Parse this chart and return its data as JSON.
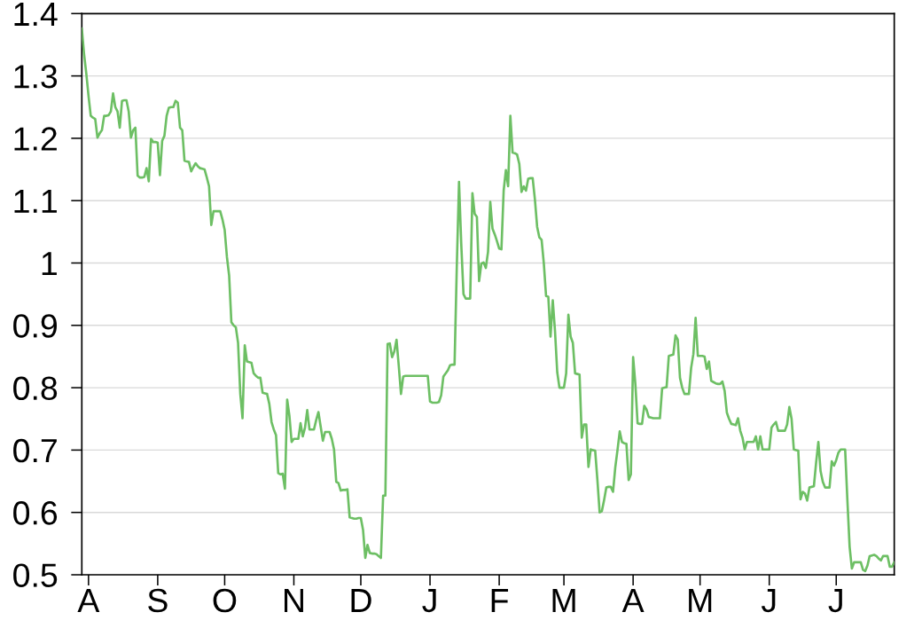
{
  "chart_data": {
    "type": "line",
    "categories": [
      null,
      null,
      null,
      "A",
      null,
      null,
      null,
      null,
      null,
      null,
      null,
      null,
      null,
      null,
      null,
      null,
      null,
      null,
      null,
      null,
      null,
      null,
      null,
      null,
      null,
      null,
      null,
      null,
      null,
      null,
      null,
      null,
      null,
      null,
      "S",
      null,
      null,
      null,
      null,
      null,
      null,
      null,
      null,
      null,
      null,
      null,
      null,
      null,
      null,
      null,
      null,
      null,
      null,
      null,
      null,
      null,
      null,
      null,
      null,
      null,
      null,
      null,
      null,
      null,
      "O",
      null,
      null,
      null,
      null,
      null,
      null,
      null,
      null,
      null,
      null,
      null,
      null,
      null,
      null,
      null,
      null,
      null,
      null,
      null,
      null,
      null,
      null,
      null,
      null,
      null,
      null,
      null,
      null,
      null,
      null,
      "N",
      null,
      null,
      null,
      null,
      null,
      null,
      null,
      null,
      null,
      null,
      null,
      null,
      null,
      null,
      null,
      null,
      null,
      null,
      null,
      null,
      null,
      null,
      null,
      null,
      null,
      null,
      null,
      null,
      null,
      "D",
      null,
      null,
      null,
      null,
      null,
      null,
      null,
      null,
      null,
      null,
      null,
      null,
      null,
      null,
      null,
      null,
      null,
      null,
      null,
      null,
      null,
      null,
      null,
      null,
      null,
      null,
      null,
      null,
      null,
      null,
      "J",
      null,
      null,
      null,
      null,
      null,
      null,
      null,
      null,
      null,
      null,
      null,
      null,
      null,
      null,
      null,
      null,
      null,
      null,
      null,
      null,
      null,
      null,
      null,
      null,
      null,
      null,
      null,
      null,
      null,
      null,
      "F",
      null,
      null,
      null,
      null,
      null,
      null,
      null,
      null,
      null,
      null,
      null,
      null,
      null,
      null,
      null,
      null,
      null,
      null,
      null,
      null,
      null,
      null,
      null,
      null,
      null,
      null,
      null,
      null,
      "M",
      null,
      null,
      null,
      null,
      null,
      null,
      null,
      null,
      null,
      null,
      null,
      null,
      null,
      null,
      null,
      null,
      null,
      null,
      null,
      null,
      null,
      null,
      null,
      null,
      null,
      null,
      null,
      null,
      null,
      null,
      "A",
      null,
      null,
      null,
      null,
      null,
      null,
      null,
      null,
      null,
      null,
      null,
      null,
      null,
      null,
      null,
      null,
      null,
      null,
      null,
      null,
      null,
      null,
      null,
      null,
      null,
      null,
      null,
      null,
      null,
      "M",
      null,
      null,
      null,
      null,
      null,
      null,
      null,
      null,
      null,
      null,
      null,
      null,
      null,
      null,
      null,
      null,
      null,
      null,
      null,
      null,
      null,
      null,
      null,
      null,
      null,
      null,
      null,
      null,
      null,
      null,
      "J",
      null,
      null,
      null,
      null,
      null,
      null,
      null,
      null,
      null,
      null,
      null,
      null,
      null,
      null,
      null,
      null,
      null,
      null,
      null,
      null,
      null,
      null,
      null,
      null,
      null,
      null,
      null,
      null,
      null,
      "J",
      null,
      null,
      null,
      null,
      null,
      null,
      null,
      null,
      null,
      null,
      null,
      null,
      null,
      null,
      null,
      null,
      null,
      null,
      null,
      null,
      null,
      null,
      null,
      null,
      null,
      null
    ],
    "series": [
      {
        "color": "#6dbf64",
        "values": [
          1.376,
          1.335,
          1.304,
          1.268,
          1.236,
          1.233,
          1.231,
          1.201,
          1.208,
          1.213,
          1.236,
          1.236,
          1.237,
          1.243,
          1.272,
          1.25,
          1.243,
          1.217,
          1.26,
          1.261,
          1.261,
          1.243,
          1.201,
          1.213,
          1.217,
          1.14,
          1.137,
          1.137,
          1.138,
          1.152,
          1.131,
          1.199,
          1.194,
          1.194,
          1.193,
          1.141,
          1.196,
          1.204,
          1.236,
          1.249,
          1.25,
          1.25,
          1.26,
          1.257,
          1.217,
          1.213,
          1.164,
          1.163,
          1.162,
          1.147,
          1.154,
          1.16,
          1.155,
          1.152,
          1.151,
          1.15,
          1.137,
          1.123,
          1.061,
          1.083,
          1.083,
          1.083,
          1.083,
          1.07,
          1.053,
          1.01,
          0.98,
          0.905,
          0.9,
          0.897,
          0.872,
          0.79,
          0.751,
          0.868,
          0.842,
          0.841,
          0.84,
          0.823,
          0.819,
          0.816,
          0.816,
          0.792,
          0.791,
          0.79,
          0.774,
          0.745,
          0.733,
          0.724,
          0.663,
          0.661,
          0.662,
          0.638,
          0.781,
          0.755,
          0.713,
          0.718,
          0.718,
          0.718,
          0.743,
          0.722,
          0.736,
          0.764,
          0.733,
          0.733,
          0.733,
          0.748,
          0.761,
          0.738,
          0.715,
          0.729,
          0.729,
          0.729,
          0.718,
          0.701,
          0.649,
          0.647,
          0.635,
          0.636,
          0.636,
          0.637,
          0.592,
          0.591,
          0.59,
          0.59,
          0.591,
          0.591,
          0.572,
          0.527,
          0.548,
          0.535,
          0.534,
          0.534,
          0.533,
          0.53,
          0.527,
          0.627,
          0.627,
          0.87,
          0.871,
          0.849,
          0.858,
          0.877,
          0.835,
          0.79,
          0.818,
          0.819,
          0.819,
          0.819,
          0.819,
          0.819,
          0.819,
          0.819,
          0.819,
          0.819,
          0.819,
          0.819,
          0.778,
          0.776,
          0.776,
          0.776,
          0.777,
          0.788,
          0.818,
          0.823,
          0.828,
          0.836,
          0.837,
          0.837,
          0.994,
          1.13,
          1.03,
          0.95,
          0.943,
          0.943,
          0.943,
          1.112,
          1.079,
          1.074,
          0.971,
          0.999,
          1.001,
          0.992,
          1.018,
          1.098,
          1.055,
          1.046,
          1.035,
          1.023,
          1.022,
          1.116,
          1.149,
          1.123,
          1.236,
          1.177,
          1.176,
          1.174,
          1.159,
          1.114,
          1.123,
          1.116,
          1.135,
          1.136,
          1.136,
          1.102,
          1.058,
          1.041,
          1.037,
          0.999,
          0.947,
          0.946,
          0.882,
          0.94,
          0.891,
          0.825,
          0.8,
          0.8,
          0.8,
          0.823,
          0.917,
          0.882,
          0.872,
          0.823,
          0.822,
          0.821,
          0.72,
          0.741,
          0.741,
          0.673,
          0.701,
          0.7,
          0.699,
          0.652,
          0.6,
          0.602,
          0.62,
          0.64,
          0.641,
          0.641,
          0.633,
          0.672,
          0.7,
          0.73,
          0.713,
          0.711,
          0.71,
          0.652,
          0.661,
          0.849,
          0.806,
          0.743,
          0.742,
          0.742,
          0.771,
          0.765,
          0.753,
          0.752,
          0.751,
          0.751,
          0.751,
          0.751,
          0.799,
          0.8,
          0.801,
          0.851,
          0.852,
          0.853,
          0.884,
          0.877,
          0.816,
          0.8,
          0.79,
          0.79,
          0.79,
          0.832,
          0.854,
          0.912,
          0.851,
          0.851,
          0.851,
          0.85,
          0.83,
          0.842,
          0.811,
          0.809,
          0.807,
          0.806,
          0.806,
          0.81,
          0.795,
          0.76,
          0.75,
          0.742,
          0.741,
          0.74,
          0.751,
          0.731,
          0.72,
          0.701,
          0.713,
          0.713,
          0.713,
          0.713,
          0.722,
          0.701,
          0.722,
          0.701,
          0.701,
          0.701,
          0.701,
          0.736,
          0.741,
          0.745,
          0.731,
          0.731,
          0.731,
          0.731,
          0.741,
          0.769,
          0.75,
          0.701,
          0.7,
          0.699,
          0.621,
          0.633,
          0.63,
          0.619,
          0.64,
          0.641,
          0.642,
          0.68,
          0.713,
          0.666,
          0.649,
          0.64,
          0.64,
          0.64,
          0.682,
          0.675,
          0.684,
          0.696,
          0.701,
          0.701,
          0.701,
          0.62,
          0.545,
          0.51,
          0.52,
          0.52,
          0.52,
          0.52,
          0.508,
          0.506,
          0.515,
          0.53,
          0.531,
          0.532,
          0.53,
          0.526,
          0.523,
          0.53,
          0.53,
          0.53,
          0.513,
          0.513,
          0.52
        ]
      }
    ],
    "ylim": [
      0.5,
      1.4
    ],
    "yticks": [
      0.5,
      0.6,
      0.7,
      0.8,
      0.9,
      1,
      1.1,
      1.2,
      1.3,
      1.4
    ],
    "grid": "y",
    "line_style": "solid"
  }
}
